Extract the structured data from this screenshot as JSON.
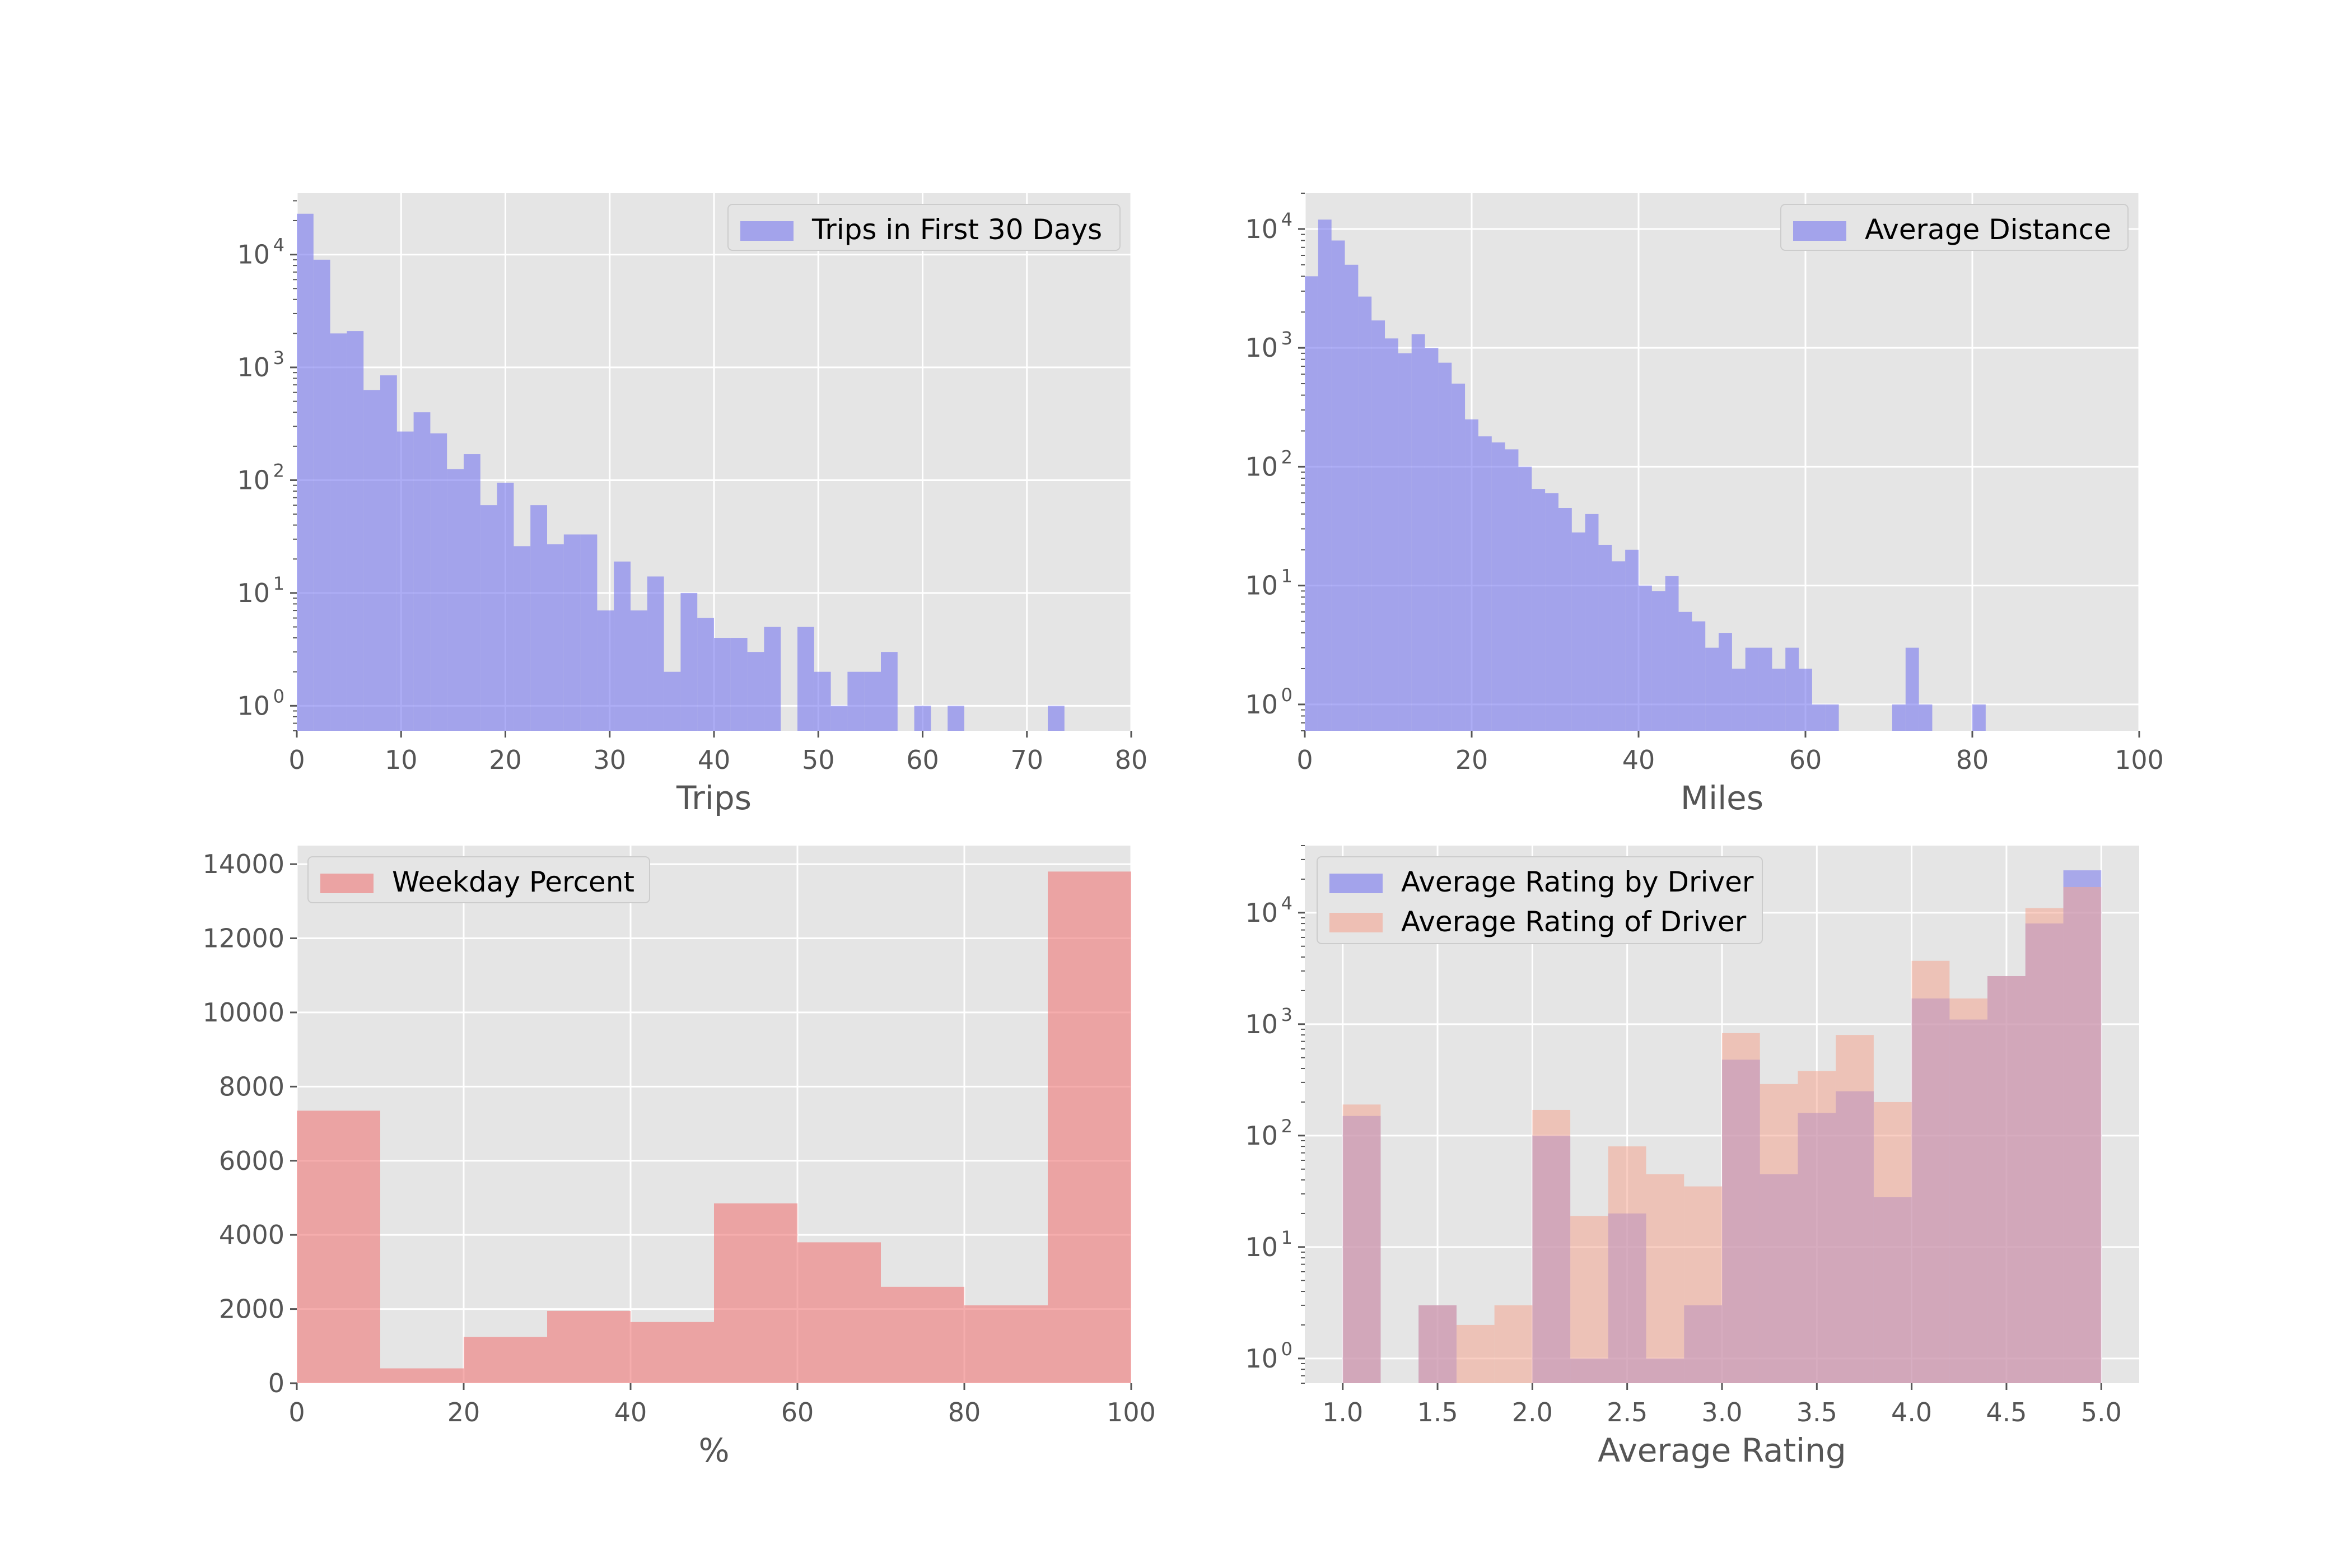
{
  "colors": {
    "axes_bg": "#e5e5e5",
    "grid": "#ffffff",
    "blue": "#7777ee",
    "red": "#ee7777",
    "salmon": "#f4a592",
    "purple_overlap": "#a984b4",
    "tick_text": "#555555"
  },
  "chart_data": [
    {
      "type": "bar",
      "xlabel": "Trips",
      "ylabel": "",
      "yscale": "log",
      "xlim": [
        0,
        80
      ],
      "ylim": [
        0.6,
        35000
      ],
      "xticks": [
        0,
        10,
        20,
        30,
        40,
        50,
        60,
        70,
        80
      ],
      "yticks": [
        1,
        10,
        100,
        1000,
        10000
      ],
      "ytick_labels": [
        "10",
        "10",
        "10",
        "10",
        "10"
      ],
      "ytick_exponents": [
        "0",
        "1",
        "2",
        "3",
        "4"
      ],
      "grid": true,
      "legend_position": "top-right",
      "bin_start": 0,
      "bin_width": 1.6,
      "series": [
        {
          "name": "Trips in First 30 Days",
          "color": "blue",
          "values": [
            23000,
            9000,
            2000,
            2100,
            630,
            850,
            270,
            400,
            260,
            125,
            170,
            60,
            95,
            26,
            60,
            27,
            33,
            33,
            7,
            19,
            7,
            14,
            2,
            10,
            6,
            4,
            4,
            3,
            5,
            0,
            5,
            2,
            1,
            2,
            2,
            3,
            0,
            1,
            0,
            1,
            0,
            0,
            0,
            0,
            0,
            1
          ]
        }
      ]
    },
    {
      "type": "bar",
      "xlabel": "Miles",
      "ylabel": "",
      "yscale": "log",
      "xlim": [
        0,
        100
      ],
      "ylim": [
        0.6,
        20000
      ],
      "xticks": [
        0,
        20,
        40,
        60,
        80,
        100
      ],
      "yticks": [
        1,
        10,
        100,
        1000,
        10000
      ],
      "ytick_labels": [
        "10",
        "10",
        "10",
        "10",
        "10"
      ],
      "ytick_exponents": [
        "0",
        "1",
        "2",
        "3",
        "4"
      ],
      "grid": true,
      "legend_position": "top-right",
      "bin_start": 0,
      "bin_width": 1.6,
      "series": [
        {
          "name": "Average Distance",
          "color": "blue",
          "values": [
            4000,
            12000,
            8000,
            5000,
            2700,
            1700,
            1200,
            900,
            1300,
            1000,
            750,
            500,
            250,
            180,
            160,
            140,
            100,
            65,
            60,
            45,
            28,
            40,
            22,
            16,
            20,
            10,
            9,
            12,
            6,
            5,
            3,
            4,
            2,
            3,
            3,
            2,
            3,
            2,
            1,
            1,
            0,
            0,
            0,
            0,
            1,
            3,
            1,
            0,
            0,
            0,
            1
          ]
        }
      ]
    },
    {
      "type": "bar",
      "xlabel": "%",
      "ylabel": "",
      "yscale": "linear",
      "xlim": [
        0,
        100
      ],
      "ylim": [
        0,
        14500
      ],
      "xticks": [
        0,
        20,
        40,
        60,
        80,
        100
      ],
      "yticks": [
        0,
        2000,
        4000,
        6000,
        8000,
        10000,
        12000,
        14000
      ],
      "ytick_labels": [
        "0",
        "2000",
        "4000",
        "6000",
        "8000",
        "10000",
        "12000",
        "14000"
      ],
      "grid": true,
      "legend_position": "top-left",
      "bin_start": 0,
      "bin_width": 10,
      "series": [
        {
          "name": "Weekday Percent",
          "color": "red",
          "values": [
            7350,
            400,
            1250,
            1950,
            1650,
            4850,
            3800,
            2600,
            2100,
            13800
          ]
        }
      ]
    },
    {
      "type": "bar",
      "xlabel": "Average Rating",
      "ylabel": "",
      "yscale": "log",
      "xlim": [
        0.8,
        5.2
      ],
      "ylim": [
        0.6,
        40000
      ],
      "xticks": [
        1.0,
        1.5,
        2.0,
        2.5,
        3.0,
        3.5,
        4.0,
        4.5,
        5.0
      ],
      "xtick_labels": [
        "1.0",
        "1.5",
        "2.0",
        "2.5",
        "3.0",
        "3.5",
        "4.0",
        "4.5",
        "5.0"
      ],
      "yticks": [
        1,
        10,
        100,
        1000,
        10000
      ],
      "ytick_labels": [
        "10",
        "10",
        "10",
        "10",
        "10"
      ],
      "ytick_exponents": [
        "0",
        "1",
        "2",
        "3",
        "4"
      ],
      "grid": true,
      "legend_position": "top-left",
      "bin_start": 1.0,
      "bin_width": 0.2,
      "series": [
        {
          "name": "Average Rating by Driver",
          "color": "blue",
          "values": [
            150,
            0,
            3,
            0,
            0,
            100,
            1,
            20,
            1,
            3,
            480,
            45,
            160,
            250,
            28,
            1700,
            1100,
            2700,
            8000,
            24000
          ]
        },
        {
          "name": "Average Rating of Driver",
          "color": "salmon",
          "values": [
            190,
            0,
            3,
            2,
            3,
            170,
            19,
            80,
            45,
            35,
            830,
            290,
            380,
            800,
            200,
            3700,
            1700,
            2700,
            11000,
            17000
          ]
        }
      ]
    }
  ]
}
